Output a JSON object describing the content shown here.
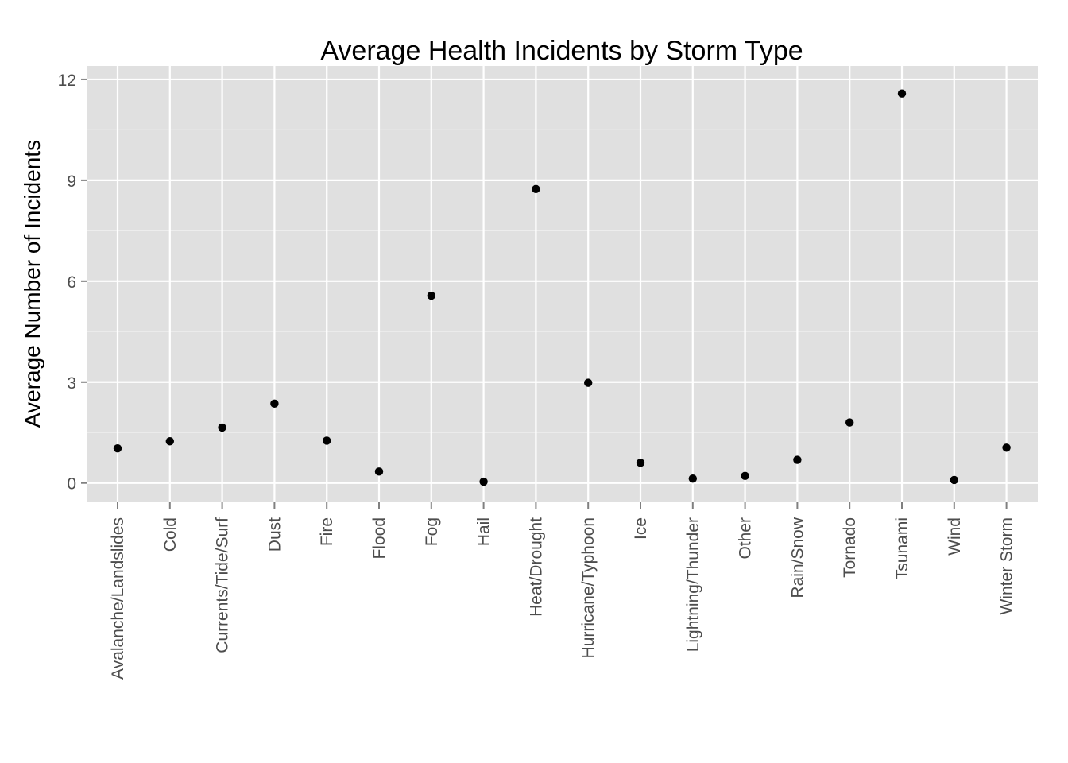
{
  "chart_data": {
    "type": "scatter",
    "title": "Average Health Incidents by Storm Type",
    "xlabel": "",
    "ylabel": "Average Number of Incidents",
    "categories": [
      "Avalanche/Landslides",
      "Cold",
      "Currents/Tide/Surf",
      "Dust",
      "Fire",
      "Flood",
      "Fog",
      "Hail",
      "Heat/Drought",
      "Hurricane/Typhoon",
      "Ice",
      "Lightning/Thunder",
      "Other",
      "Rain/Snow",
      "Tornado",
      "Tsunami",
      "Wind",
      "Winter Storm"
    ],
    "values": [
      1.03,
      1.24,
      1.65,
      2.36,
      1.26,
      0.34,
      5.57,
      0.04,
      8.74,
      2.98,
      0.6,
      0.13,
      0.21,
      0.69,
      1.8,
      11.58,
      0.09,
      1.05
    ],
    "ylim": [
      -0.55,
      12.4
    ],
    "yticks": [
      0,
      3,
      6,
      9,
      12
    ],
    "ytick_labels": [
      "0",
      "3",
      "6",
      "9",
      "12"
    ],
    "grid": true,
    "legend": "none",
    "colors": {
      "panel": "#e0e0e0",
      "grid_major": "#ffffff",
      "grid_minor": "#ededed",
      "point": "#000000",
      "tick": "#808080"
    }
  }
}
